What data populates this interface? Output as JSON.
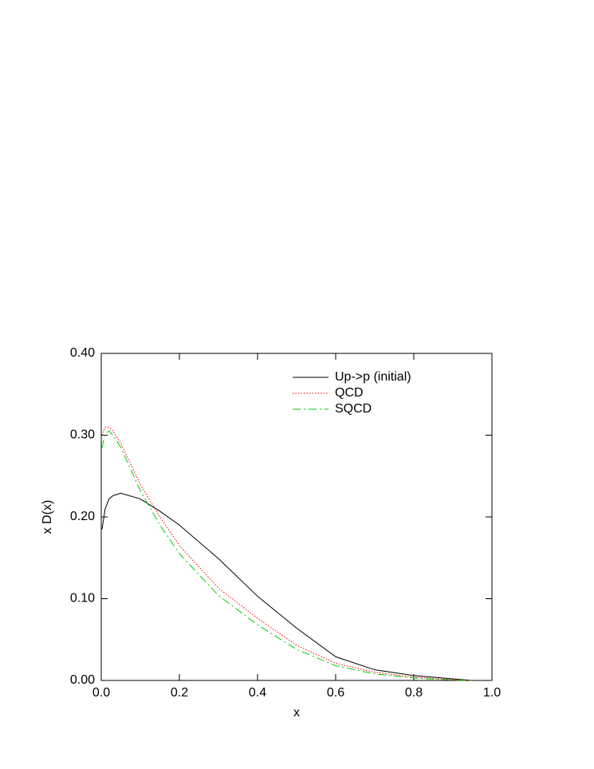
{
  "chart_data": {
    "type": "line",
    "x_label": "x",
    "y_label": "x D(x)",
    "x": [
      0.002,
      0.01,
      0.02,
      0.03,
      0.05,
      0.1,
      0.15,
      0.2,
      0.3,
      0.4,
      0.5,
      0.6,
      0.7,
      0.8,
      0.9,
      0.95
    ],
    "series": [
      {
        "name": "Up->p (initial)",
        "color": "#000000",
        "dash": "solid",
        "values": [
          0.185,
          0.21,
          0.222,
          0.226,
          0.229,
          0.222,
          0.207,
          0.19,
          0.149,
          0.103,
          0.064,
          0.029,
          0.013,
          0.006,
          0.002,
          0.0
        ]
      },
      {
        "name": "QCD",
        "color": "#ff0000",
        "dash": "dotted",
        "values": [
          0.3,
          0.31,
          0.31,
          0.305,
          0.29,
          0.24,
          0.2,
          0.165,
          0.113,
          0.076,
          0.043,
          0.021,
          0.01,
          0.004,
          0.001,
          0.0
        ]
      },
      {
        "name": "SQCD",
        "color": "#00cc00",
        "dash": "dashdot",
        "values": [
          0.285,
          0.302,
          0.305,
          0.3,
          0.285,
          0.232,
          0.19,
          0.155,
          0.104,
          0.068,
          0.038,
          0.018,
          0.008,
          0.003,
          0.0005,
          0.0
        ]
      }
    ],
    "xlim": [
      0,
      1
    ],
    "ylim": [
      0,
      0.4
    ],
    "xticks": [
      {
        "value": 0,
        "label": "0.0"
      },
      {
        "value": 0.2,
        "label": "0.2"
      },
      {
        "value": 0.4,
        "label": "0.4"
      },
      {
        "value": 0.6,
        "label": "0.6"
      },
      {
        "value": 0.8,
        "label": "0.8"
      },
      {
        "value": 1,
        "label": "1.0"
      }
    ],
    "yticks": [
      {
        "value": 0,
        "label": "0.00"
      },
      {
        "value": 0.1,
        "label": "0.10"
      },
      {
        "value": 0.2,
        "label": "0.20"
      },
      {
        "value": 0.3,
        "label": "0.30"
      },
      {
        "value": 0.4,
        "label": "0.40"
      }
    ],
    "grid": false,
    "legend": "upper right"
  }
}
